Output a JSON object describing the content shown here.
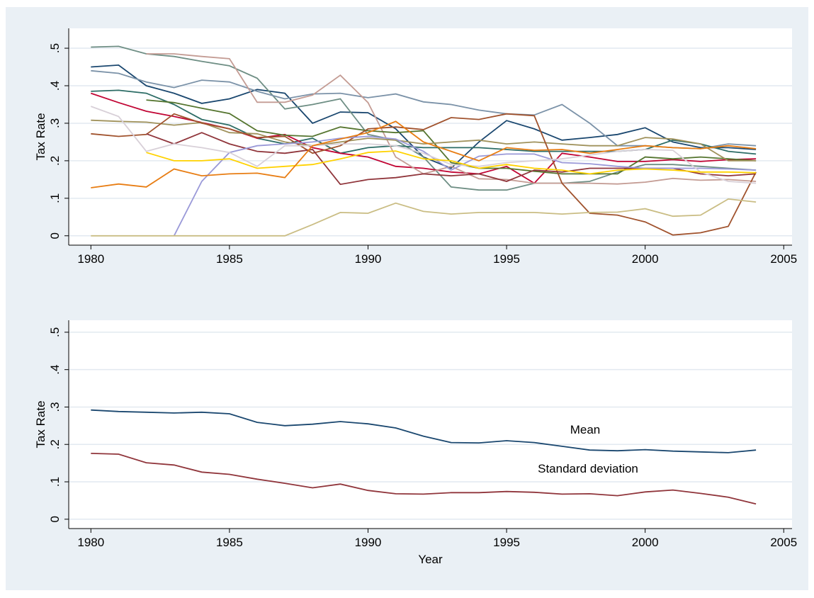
{
  "chart_data": [
    {
      "type": "line",
      "ylabel": "Tax Rate",
      "grid": true,
      "x": [
        1980,
        1981,
        1982,
        1983,
        1984,
        1985,
        1986,
        1987,
        1988,
        1989,
        1990,
        1991,
        1992,
        1993,
        1994,
        1995,
        1996,
        1997,
        1998,
        1999,
        2000,
        2001,
        2002,
        2003,
        2004
      ],
      "xlim": [
        1979.2,
        2005.3
      ],
      "xticks": [
        1980,
        1985,
        1990,
        1995,
        2000,
        2005
      ],
      "ylim": [
        -0.025,
        0.553
      ],
      "yticks": [
        0,
        {
          "value": 0.1,
          "label": ".1"
        },
        {
          "value": 0.2,
          "label": ".2"
        },
        {
          "value": 0.3,
          "label": ".3"
        },
        {
          "value": 0.4,
          "label": ".4"
        },
        {
          "value": 0.5,
          "label": ".5"
        }
      ],
      "series": [
        {
          "color": "#1a476f",
          "values": [
            0.45,
            0.455,
            0.4,
            0.38,
            0.353,
            0.365,
            0.39,
            0.38,
            0.3,
            0.33,
            0.328,
            0.285,
            0.21,
            0.18,
            0.25,
            0.307,
            0.285,
            0.255,
            0.262,
            0.27,
            0.288,
            0.25,
            0.235,
            0.235,
            0.23
          ]
        },
        {
          "color": "#6e8e84",
          "values": [
            0.503,
            0.505,
            0.485,
            0.478,
            0.465,
            0.453,
            0.42,
            0.338,
            0.35,
            0.365,
            0.27,
            0.255,
            0.21,
            0.13,
            0.122,
            0.122,
            0.14,
            0.14,
            0.145,
            0.17,
            0.19,
            0.19,
            0.185,
            0.18,
            0.175
          ]
        },
        {
          "color": "#7b92a8",
          "values": [
            0.44,
            0.433,
            0.41,
            0.395,
            0.415,
            0.41,
            0.385,
            0.365,
            0.378,
            0.38,
            0.368,
            0.378,
            0.357,
            0.35,
            0.335,
            0.325,
            0.322,
            0.35,
            0.3,
            0.24,
            0.24,
            0.235,
            0.232,
            0.245,
            0.24
          ]
        },
        {
          "color": "#2d6d66",
          "values": [
            0.385,
            0.388,
            0.38,
            0.35,
            0.31,
            0.295,
            0.26,
            0.245,
            0.26,
            0.22,
            0.235,
            0.24,
            0.235,
            0.235,
            0.235,
            0.23,
            0.225,
            0.225,
            0.225,
            0.225,
            0.23,
            0.255,
            0.245,
            0.225,
            0.218
          ]
        },
        {
          "color": "#c10534",
          "values": [
            0.38,
            0.355,
            0.332,
            0.318,
            0.302,
            0.285,
            0.26,
            0.27,
            0.235,
            0.22,
            0.21,
            0.185,
            0.18,
            0.17,
            0.165,
            0.185,
            0.14,
            0.22,
            0.21,
            0.198,
            0.198,
            0.203,
            0.198,
            0.203,
            0.205
          ]
        },
        {
          "color": "#c49c94",
          "values": [
            null,
            null,
            0.485,
            0.485,
            0.478,
            0.472,
            0.356,
            0.356,
            0.375,
            0.428,
            0.355,
            0.21,
            0.165,
            0.185,
            0.152,
            0.15,
            0.14,
            0.14,
            0.14,
            0.138,
            0.143,
            0.153,
            0.148,
            0.15,
            0.145
          ]
        },
        {
          "color": "#55752f",
          "values": [
            null,
            null,
            0.362,
            0.355,
            0.34,
            0.326,
            0.28,
            0.268,
            0.265,
            0.29,
            0.28,
            0.275,
            0.28,
            0.195,
            0.18,
            0.18,
            0.172,
            0.165,
            0.165,
            0.165,
            0.21,
            0.205,
            0.21,
            0.205,
            0.2
          ]
        },
        {
          "color": "#a0925c",
          "values": [
            0.308,
            0.305,
            0.303,
            0.295,
            0.302,
            0.275,
            0.272,
            0.25,
            0.24,
            0.25,
            0.26,
            0.255,
            0.245,
            0.25,
            0.255,
            0.245,
            0.25,
            0.245,
            0.24,
            0.24,
            0.262,
            0.258,
            0.245,
            0.2,
            0.2
          ]
        },
        {
          "color": "#a0522d",
          "values": [
            0.272,
            0.265,
            0.27,
            0.325,
            0.3,
            0.285,
            0.262,
            0.265,
            0.22,
            0.24,
            0.285,
            0.29,
            0.283,
            0.315,
            0.31,
            0.325,
            0.32,
            0.14,
            0.06,
            0.055,
            0.037,
            0.002,
            0.008,
            0.025,
            0.17
          ]
        },
        {
          "color": "#90353b",
          "values": [
            null,
            null,
            0.272,
            0.245,
            0.275,
            0.245,
            0.225,
            0.22,
            0.23,
            0.137,
            0.15,
            0.155,
            0.165,
            0.16,
            0.165,
            0.145,
            0.175,
            0.17,
            0.18,
            0.18,
            0.18,
            0.18,
            0.165,
            0.16,
            0.165
          ]
        },
        {
          "color": "#9a99d8",
          "values": [
            null,
            null,
            null,
            0,
            0.145,
            0.222,
            0.24,
            0.245,
            0.25,
            0.26,
            0.265,
            0.258,
            0.225,
            0.175,
            0.212,
            0.218,
            0.218,
            0.195,
            0.192,
            0.185,
            0.18,
            0.18,
            0.18,
            0.178,
            0.175
          ]
        },
        {
          "color": "#d8d0d8",
          "values": [
            0.345,
            0.318,
            0.225,
            0.245,
            0.235,
            0.222,
            0.185,
            0.24,
            0.24,
            0.245,
            0.245,
            0.24,
            0.22,
            0.19,
            0.185,
            0.195,
            0.2,
            0.205,
            0.215,
            0.225,
            0.23,
            0.228,
            0.17,
            0.145,
            0.14
          ]
        },
        {
          "color": "#ffd200",
          "values": [
            null,
            null,
            0.222,
            0.2,
            0.2,
            0.205,
            0.18,
            0.185,
            0.19,
            0.205,
            0.222,
            0.226,
            0.205,
            0.2,
            0.18,
            0.19,
            0.18,
            0.175,
            0.165,
            0.175,
            0.178,
            0.175,
            0.17,
            0.17,
            0.168
          ]
        },
        {
          "color": "#e87d13",
          "values": [
            0.128,
            0.138,
            0.13,
            0.178,
            0.16,
            0.165,
            0.167,
            0.155,
            0.24,
            0.258,
            0.275,
            0.305,
            0.25,
            0.225,
            0.2,
            0.235,
            0.228,
            0.23,
            0.22,
            0.23,
            0.24,
            0.235,
            0.232,
            0.24,
            0.232
          ]
        },
        {
          "color": "#cabd84",
          "values": [
            0,
            0,
            0,
            0,
            0,
            0,
            0,
            0,
            0.03,
            0.062,
            0.06,
            0.087,
            0.065,
            0.058,
            0.062,
            0.062,
            0.062,
            0.058,
            0.062,
            0.063,
            0.072,
            0.052,
            0.055,
            0.098,
            0.09
          ]
        }
      ]
    },
    {
      "type": "line",
      "ylabel": "Tax Rate",
      "xlabel": "Year",
      "grid": true,
      "x": [
        1980,
        1981,
        1982,
        1983,
        1984,
        1985,
        1986,
        1987,
        1988,
        1989,
        1990,
        1991,
        1992,
        1993,
        1994,
        1995,
        1996,
        1997,
        1998,
        1999,
        2000,
        2001,
        2002,
        2003,
        2004
      ],
      "xlim": [
        1979.2,
        2005.3
      ],
      "xticks": [
        1980,
        1985,
        1990,
        1995,
        2000,
        2005
      ],
      "ylim": [
        -0.025,
        0.532
      ],
      "yticks": [
        0,
        {
          "value": 0.1,
          "label": ".1"
        },
        {
          "value": 0.2,
          "label": ".2"
        },
        {
          "value": 0.3,
          "label": ".3"
        },
        {
          "value": 0.4,
          "label": ".4"
        },
        {
          "value": 0.5,
          "label": ".5"
        }
      ],
      "annotations": [
        "Mean",
        "Standard deviation"
      ],
      "series": [
        {
          "color": "#1a476f",
          "values": [
            0.292,
            0.288,
            0.286,
            0.284,
            0.286,
            0.282,
            0.259,
            0.25,
            0.254,
            0.261,
            0.255,
            0.244,
            0.222,
            0.205,
            0.204,
            0.21,
            0.205,
            0.195,
            0.185,
            0.183,
            0.186,
            0.182,
            0.18,
            0.178,
            0.185
          ]
        },
        {
          "color": "#90353b",
          "values": [
            0.176,
            0.174,
            0.151,
            0.145,
            0.126,
            0.12,
            0.107,
            0.096,
            0.084,
            0.094,
            0.077,
            0.068,
            0.067,
            0.071,
            0.071,
            0.074,
            0.072,
            0.067,
            0.068,
            0.063,
            0.073,
            0.078,
            0.069,
            0.059,
            0.041
          ]
        }
      ]
    }
  ]
}
